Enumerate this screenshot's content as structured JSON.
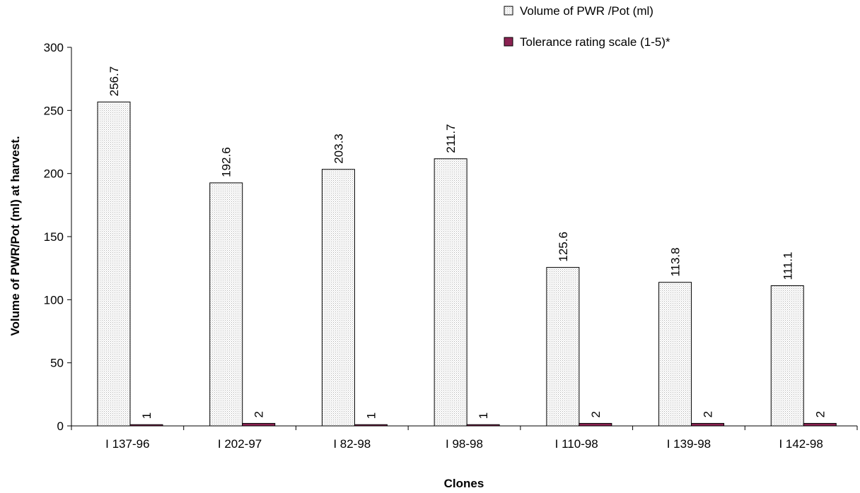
{
  "chart_data": {
    "type": "bar",
    "title": "",
    "xlabel": "Clones",
    "ylabel": "Volume of PWR/Pot (ml) at harvest.",
    "ylim": [
      0,
      300
    ],
    "yticks": [
      0,
      50,
      100,
      150,
      200,
      250,
      300
    ],
    "categories": [
      "I 137-96",
      "I 202-97",
      "I 82-98",
      "I 98-98",
      "I 110-98",
      "I 139-98",
      "I 142-98"
    ],
    "series": [
      {
        "name": "Volume of PWR /Pot (ml)",
        "values": [
          256.7,
          192.6,
          203.3,
          211.7,
          125.6,
          113.8,
          111.1
        ],
        "labels": [
          "256.7",
          "192.6",
          "203.3",
          "211.7",
          "125.6",
          "113.8",
          "111.1"
        ],
        "color": "#f0f0f0"
      },
      {
        "name": "Tolerance rating scale  (1-5)*",
        "values": [
          1,
          2,
          1,
          1,
          2,
          2,
          2
        ],
        "labels": [
          "1",
          "2",
          "1",
          "1",
          "2",
          "2",
          "2"
        ],
        "color": "#8b2252"
      }
    ],
    "grid": false,
    "legend_position": "top-right"
  }
}
